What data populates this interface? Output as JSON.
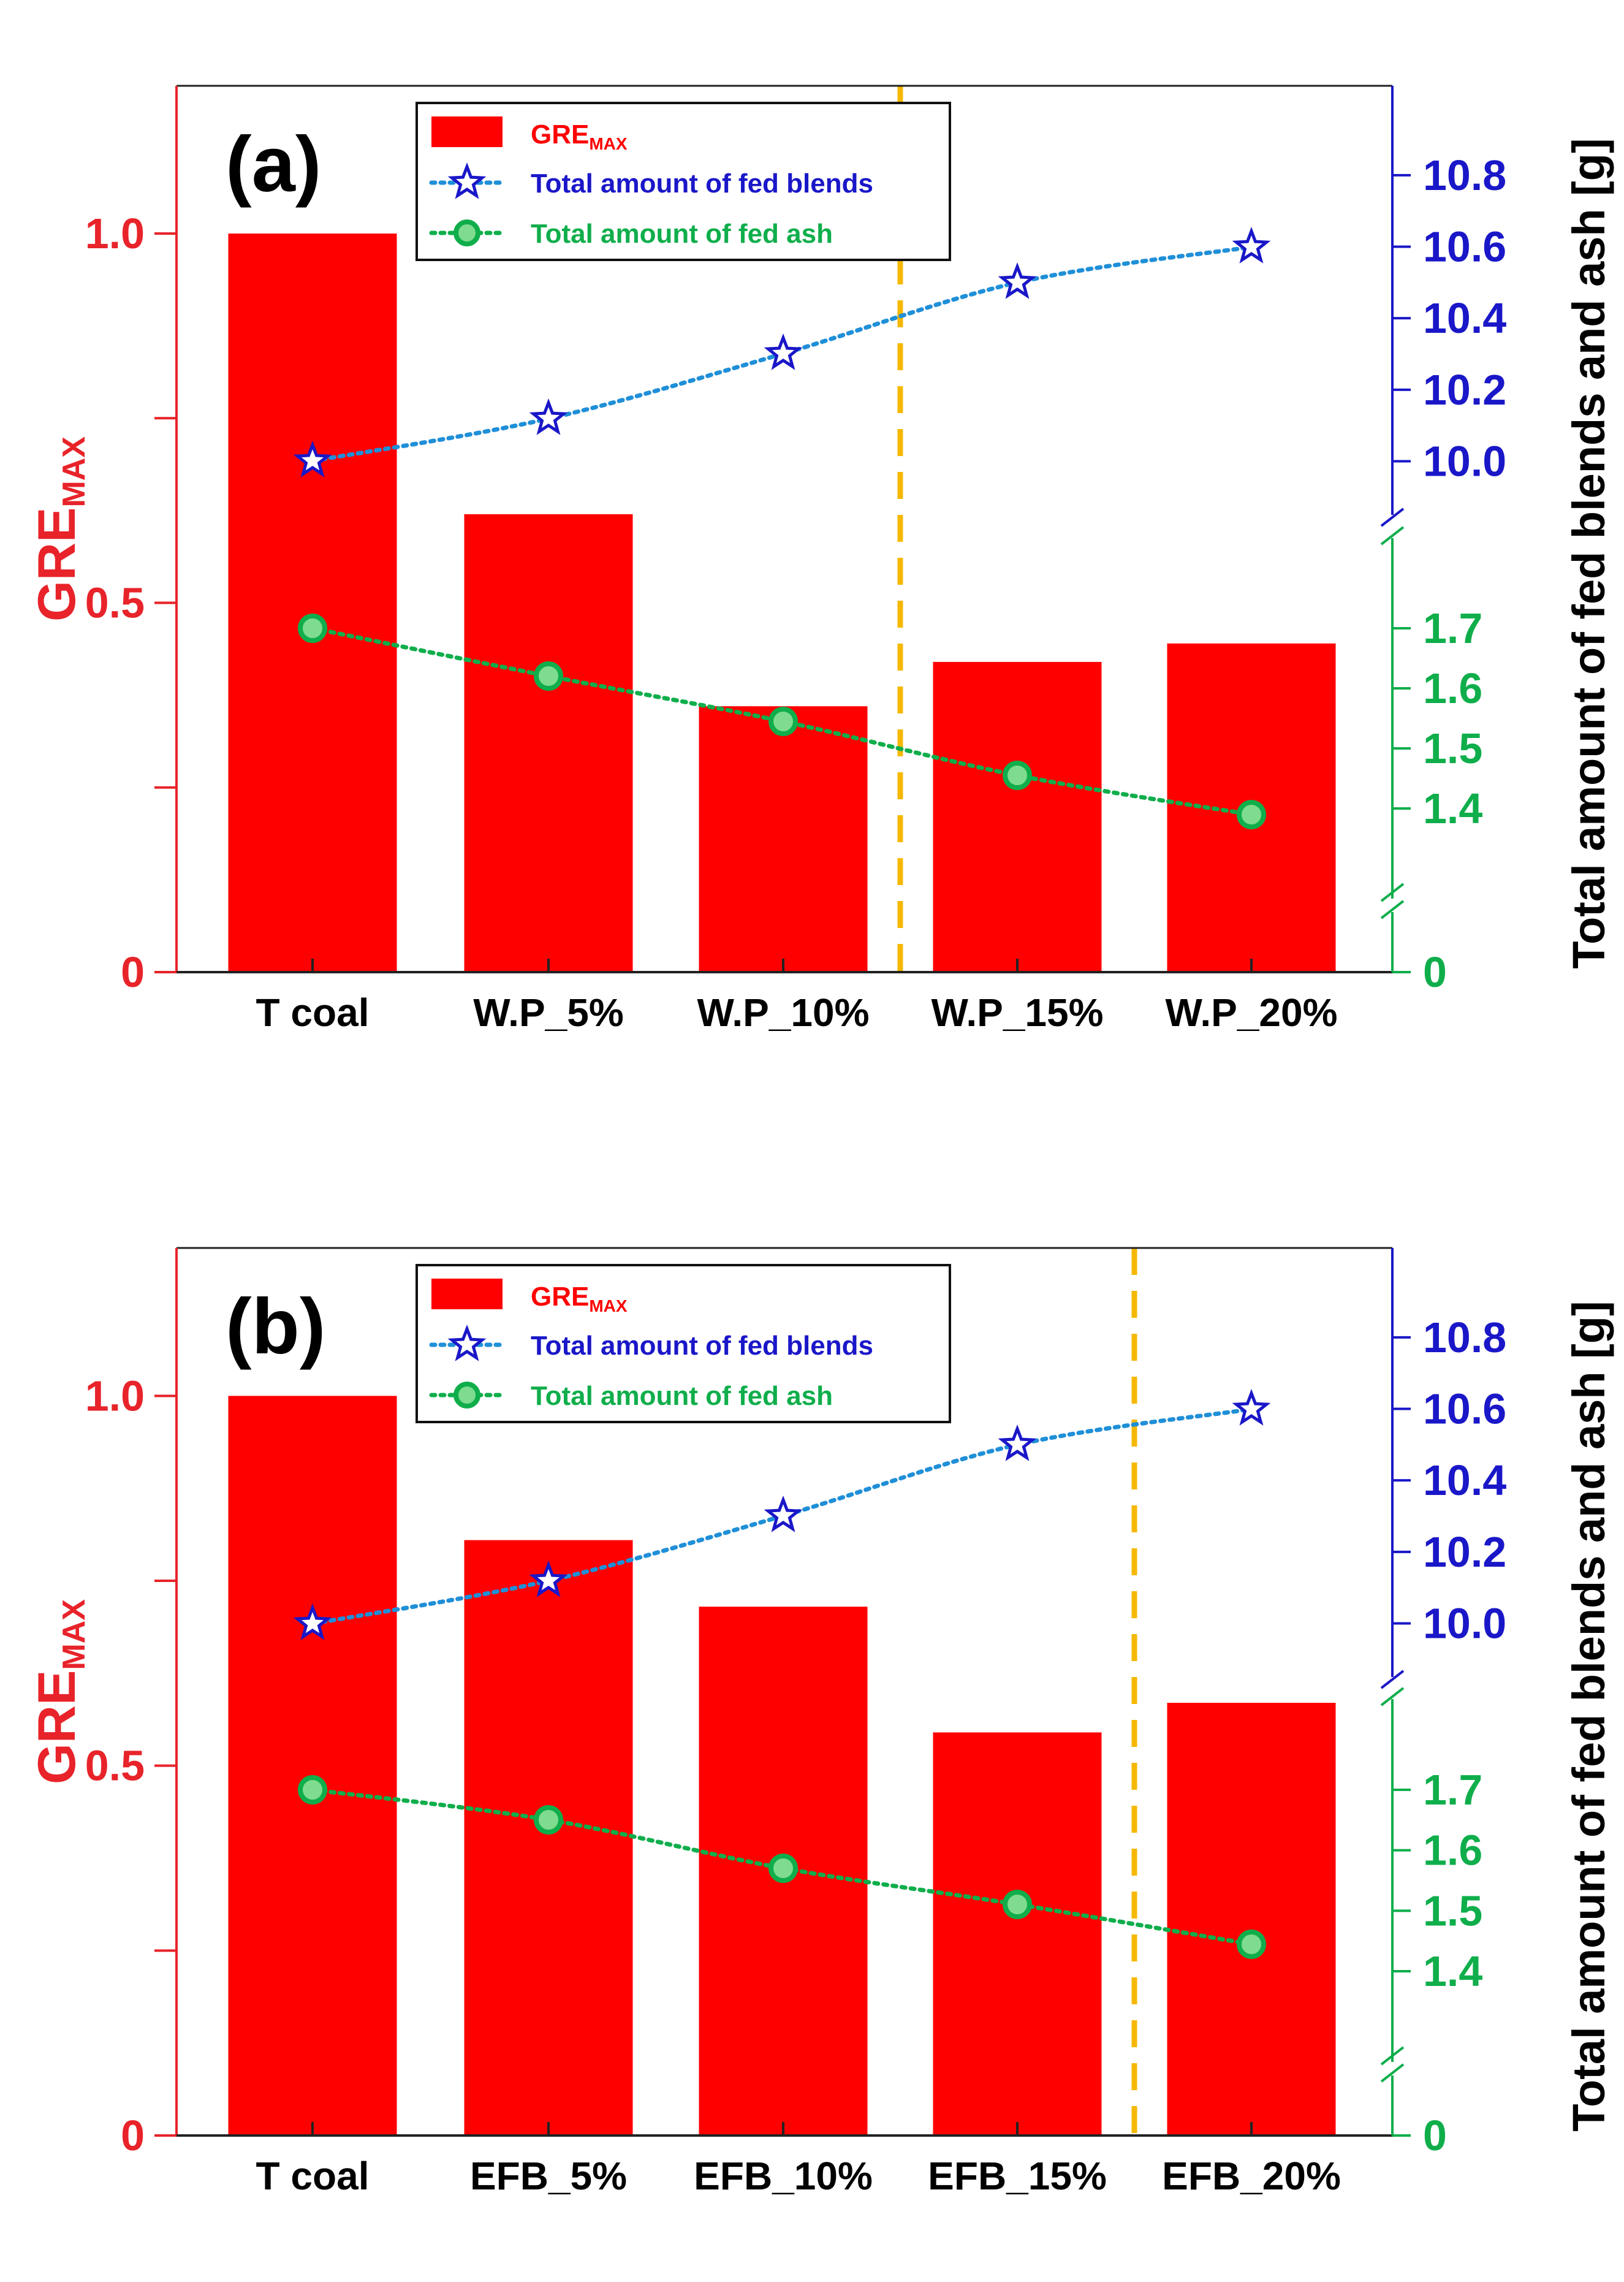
{
  "colors": {
    "bar": "#ff0000",
    "left_axis": "#e8232a",
    "blue_axis": "#1a17c8",
    "green_axis": "#0fae4b",
    "blends_series": "#1f8fd8",
    "blends_marker": "#1a17c8",
    "ash_series": "#0fae4b",
    "divider": "#f5b800",
    "ink": "#000000"
  },
  "axis_labels": {
    "left_main": "GRE",
    "left_sub": "MAX",
    "right": "Total amount of fed blends and ash [g]"
  },
  "chart_data": [
    {
      "type": "bar",
      "panel_label": "(a)",
      "categories": [
        "T coal",
        "W.P_5%",
        "W.P_10%",
        "W.P_15%",
        "W.P_20%"
      ],
      "series": [
        {
          "name": "GRE_MAX",
          "axis": "left",
          "values": [
            1.0,
            0.62,
            0.36,
            0.42,
            0.445
          ]
        },
        {
          "name": "Total amount of fed blends",
          "axis": "right-upper",
          "values": [
            10.0,
            10.12,
            10.3,
            10.5,
            10.6
          ]
        },
        {
          "name": "Total amount of fed ash",
          "axis": "right-lower",
          "values": [
            1.7,
            1.62,
            1.545,
            1.455,
            1.39
          ]
        }
      ],
      "legend": [
        {
          "main": "GRE",
          "sub": "MAX"
        },
        {
          "main": "Total amount of fed blends",
          "sub": ""
        },
        {
          "main": "Total amount of fed ash",
          "sub": ""
        }
      ],
      "left_axis": {
        "ylim": [
          0,
          1.2
        ],
        "ticks": [
          0,
          0.25,
          0.5,
          0.75,
          1.0
        ],
        "tick_labels": [
          "0",
          "",
          "0.5",
          "",
          "1.0"
        ]
      },
      "right_upper_axis": {
        "ylim": [
          9.85,
          11.05
        ],
        "ticks": [
          10.0,
          10.2,
          10.4,
          10.6,
          10.8
        ],
        "tick_labels": [
          "10.0",
          "10.2",
          "10.4",
          "10.6",
          "10.8"
        ]
      },
      "right_lower_axis": {
        "ylim": [
          1.25,
          1.85
        ],
        "ticks": [
          1.4,
          1.5,
          1.6,
          1.7
        ],
        "tick_labels": [
          "1.4",
          "1.5",
          "1.6",
          "1.7"
        ],
        "zero_label": "0"
      },
      "divider_after_category": 2,
      "legend_position": "top-center"
    },
    {
      "type": "bar",
      "panel_label": "(b)",
      "categories": [
        "T coal",
        "EFB_5%",
        "EFB_10%",
        "EFB_15%",
        "EFB_20%"
      ],
      "series": [
        {
          "name": "GRE_MAX",
          "axis": "left",
          "values": [
            1.0,
            0.805,
            0.715,
            0.545,
            0.585
          ]
        },
        {
          "name": "Total amount of fed blends",
          "axis": "right-upper",
          "values": [
            10.0,
            10.12,
            10.3,
            10.5,
            10.6
          ]
        },
        {
          "name": "Total amount of fed ash",
          "axis": "right-lower",
          "values": [
            1.7,
            1.65,
            1.57,
            1.51,
            1.445
          ]
        }
      ],
      "legend": [
        {
          "main": "GRE",
          "sub": "MAX"
        },
        {
          "main": "Total amount of fed blends",
          "sub": ""
        },
        {
          "main": "Total amount of fed ash",
          "sub": ""
        }
      ],
      "left_axis": {
        "ylim": [
          0,
          1.2
        ],
        "ticks": [
          0,
          0.25,
          0.5,
          0.75,
          1.0
        ],
        "tick_labels": [
          "0",
          "",
          "0.5",
          "",
          "1.0"
        ]
      },
      "right_upper_axis": {
        "ylim": [
          9.85,
          11.05
        ],
        "ticks": [
          10.0,
          10.2,
          10.4,
          10.6,
          10.8
        ],
        "tick_labels": [
          "10.0",
          "10.2",
          "10.4",
          "10.6",
          "10.8"
        ]
      },
      "right_lower_axis": {
        "ylim": [
          1.25,
          1.85
        ],
        "ticks": [
          1.4,
          1.5,
          1.6,
          1.7
        ],
        "tick_labels": [
          "1.4",
          "1.5",
          "1.6",
          "1.7"
        ],
        "zero_label": "0"
      },
      "divider_after_category": 3,
      "legend_position": "top-center"
    }
  ]
}
